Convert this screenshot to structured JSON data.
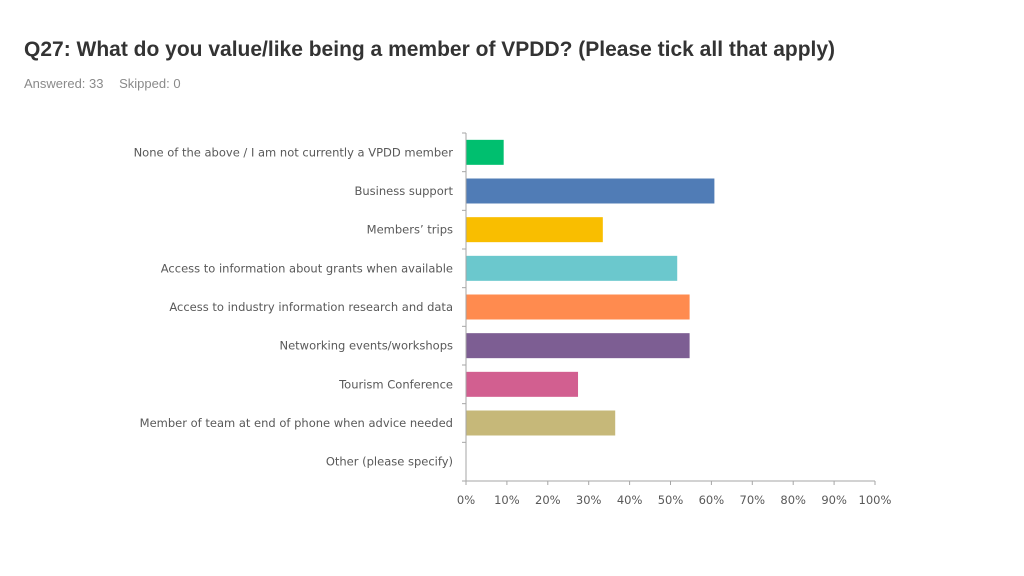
{
  "header": {
    "title": "Q27: What do you value/like being a member of VPDD? (Please tick all that apply)",
    "answered": "Answered: 33",
    "skipped": "Skipped: 0"
  },
  "chart_data": {
    "type": "bar",
    "orientation": "horizontal",
    "categories": [
      "None of the above / I am not currently a VPDD member",
      "Business support",
      "Members’ trips",
      "Access to information about grants when available",
      "Access to industry information research and data",
      "Networking events/workshops",
      "Tourism Conference",
      "Member of team at end of phone when advice needed",
      "Other (please specify)"
    ],
    "values": [
      9.09,
      60.61,
      33.33,
      51.52,
      54.55,
      54.55,
      27.27,
      36.36,
      0
    ],
    "colors": [
      "#00bf6f",
      "#507cb6",
      "#f9be00",
      "#6bc8cd",
      "#ff8b4f",
      "#7d5e93",
      "#d25f90",
      "#c6b879",
      "#999999"
    ],
    "xlim": [
      0,
      100
    ],
    "x_ticks": [
      "0%",
      "10%",
      "20%",
      "30%",
      "40%",
      "50%",
      "60%",
      "70%",
      "80%",
      "90%",
      "100%"
    ],
    "grid": false
  }
}
